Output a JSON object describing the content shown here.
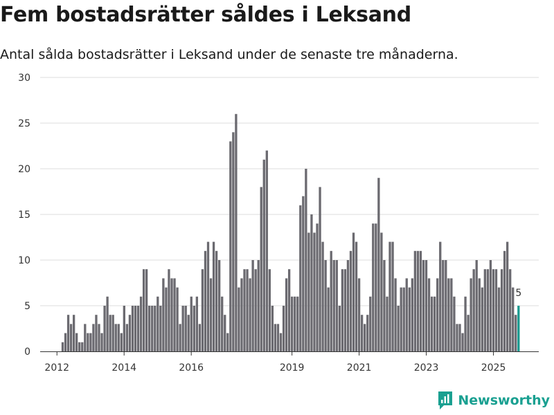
{
  "chart_data": {
    "type": "bar",
    "title": "Fem bostadsrätter såldes i Leksand",
    "subtitle": "Antal sålda bostadsrätter i Leksand under de senaste tre månaderna.",
    "xlabel": "",
    "ylabel": "",
    "ylim": [
      0,
      30
    ],
    "yticks": [
      0,
      5,
      10,
      15,
      20,
      25,
      30
    ],
    "x_start": 2011.5,
    "x_end": 2026.35,
    "xticks": [
      {
        "value": 2012,
        "label": "2012"
      },
      {
        "value": 2014,
        "label": "2014"
      },
      {
        "value": 2016,
        "label": "2016"
      },
      {
        "value": 2019,
        "label": "2019"
      },
      {
        "value": 2021,
        "label": "2021"
      },
      {
        "value": 2023,
        "label": "2023"
      },
      {
        "value": 2025,
        "label": "2025"
      }
    ],
    "first_bar_x": 2012.17,
    "bar_step": 0.0833,
    "values": [
      1,
      2,
      4,
      3,
      4,
      2,
      1,
      1,
      3,
      2,
      2,
      3,
      4,
      3,
      2,
      5,
      6,
      4,
      4,
      3,
      3,
      2,
      5,
      3,
      4,
      5,
      5,
      5,
      6,
      9,
      9,
      5,
      5,
      5,
      6,
      5,
      8,
      7,
      9,
      8,
      8,
      7,
      3,
      5,
      5,
      4,
      6,
      5,
      6,
      3,
      9,
      11,
      12,
      8,
      12,
      11,
      10,
      6,
      4,
      2,
      23,
      24,
      26,
      7,
      8,
      9,
      9,
      8,
      10,
      9,
      10,
      18,
      21,
      22,
      9,
      5,
      3,
      3,
      2,
      5,
      8,
      9,
      6,
      6,
      6,
      16,
      17,
      20,
      13,
      15,
      13,
      14,
      18,
      12,
      10,
      7,
      11,
      10,
      10,
      5,
      9,
      9,
      10,
      11,
      13,
      12,
      8,
      4,
      3,
      4,
      6,
      14,
      14,
      19,
      13,
      10,
      6,
      12,
      12,
      8,
      5,
      7,
      7,
      8,
      7,
      8,
      11,
      11,
      11,
      10,
      10,
      8,
      6,
      6,
      8,
      12,
      10,
      10,
      8,
      8,
      6,
      3,
      3,
      2,
      6,
      4,
      8,
      9,
      10,
      8,
      7,
      9,
      9,
      10,
      9,
      9,
      7,
      9,
      11,
      12,
      9,
      7,
      4,
      5
    ],
    "highlight_index": 163,
    "highlight_label": "5",
    "bar_color": "#6b6a70",
    "highlight_color": "#1a9a8f",
    "grid": true
  },
  "brand": {
    "name": "Newsworthy",
    "logo_icon": "newsworthy-logo-icon",
    "color": "#1aa091"
  }
}
